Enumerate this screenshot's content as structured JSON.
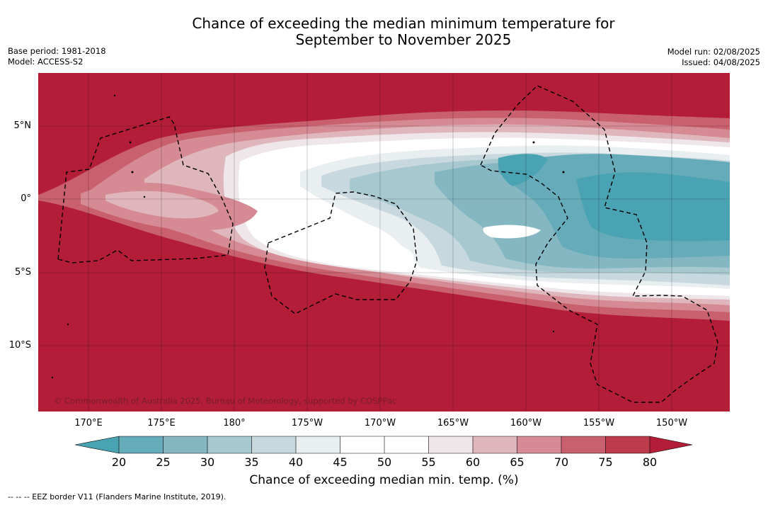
{
  "title_line1": "Chance of exceeding the median minimum temperature for",
  "title_line2": "September to November 2025",
  "base_period": "Base period: 1981-2018",
  "model": "Model: ACCESS-S2",
  "model_run": "Model run: 02/08/2025",
  "issued": "Issued: 04/08/2025",
  "copyright": "© Commonwealth of Australia 2025, Bureau of Meteorology, supported by COSPPac",
  "lat_labels": [
    "5°N",
    "0°",
    "5°S",
    "10°S"
  ],
  "lon_labels": [
    "170°E",
    "175°E",
    "180°",
    "175°W",
    "170°W",
    "165°W",
    "160°W",
    "155°W",
    "150°W"
  ],
  "colorbar": {
    "ticks": [
      "20",
      "25",
      "30",
      "35",
      "40",
      "45",
      "50",
      "55",
      "60",
      "65",
      "70",
      "75",
      "80"
    ],
    "colors": [
      "#4aa3b2",
      "#66abba",
      "#85b7c3",
      "#a6c8ce",
      "#c7d8de",
      "#e9eef1",
      "#ffffff",
      "#ffffff",
      "#eee6e9",
      "#dfb6bc",
      "#d68a93",
      "#c9606d",
      "#bd3c4b",
      "#b31d38"
    ],
    "label": "Chance of exceeding median min. temp. (%)"
  },
  "legend_footnote": "--  --  -- EEZ border V11 (Flanders Marine Institute, 2019).",
  "colors": {
    "high": "#b31d38",
    "low": "#4aa3b2"
  }
}
